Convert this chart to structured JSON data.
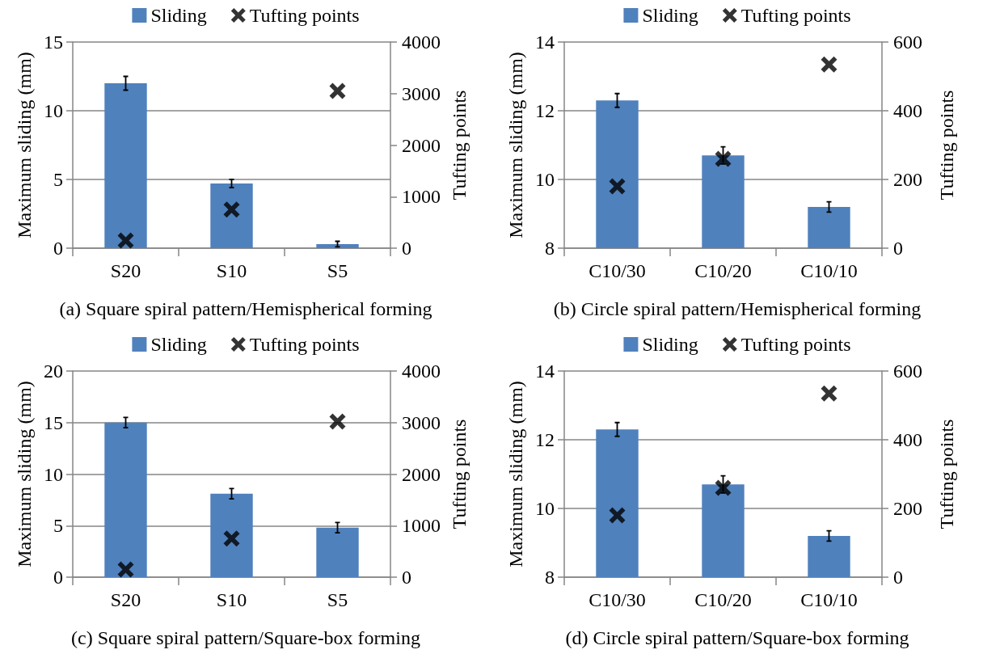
{
  "chart_data": [
    {
      "type": "bar",
      "title": "(a) Square spiral pattern/Hemispherical forming",
      "ylabel": "Maximum sliding (mm)",
      "y2label": "Tufting points",
      "categories": [
        "S20",
        "S10",
        "S5"
      ],
      "series": [
        {
          "name": "Sliding",
          "color": "#4f81bd",
          "values": [
            12.0,
            4.7,
            0.3
          ],
          "errors": [
            0.5,
            0.3,
            0.2
          ]
        },
        {
          "name": "Tufting points",
          "type": "scatter",
          "axis": "y2",
          "color": "#000000",
          "marker": "cross",
          "values": [
            150,
            750,
            3050
          ]
        }
      ],
      "ylim": [
        0,
        15
      ],
      "yticks": [
        0,
        5,
        10,
        15
      ],
      "y2lim": [
        0,
        4000
      ],
      "y2ticks": [
        0,
        1000,
        2000,
        3000,
        4000
      ],
      "grid": "y",
      "legend": "top"
    },
    {
      "type": "bar",
      "title": "(b) Circle spiral pattern/Hemispherical forming",
      "ylabel": "Maximum sliding (mm)",
      "y2label": "Tufting points",
      "categories": [
        "C10/30",
        "C10/20",
        "C10/10"
      ],
      "series": [
        {
          "name": "Sliding",
          "color": "#4f81bd",
          "values": [
            12.3,
            10.7,
            9.2
          ],
          "errors": [
            0.2,
            0.25,
            0.15
          ]
        },
        {
          "name": "Tufting points",
          "type": "scatter",
          "axis": "y2",
          "color": "#000000",
          "marker": "cross",
          "values": [
            180,
            260,
            535
          ]
        }
      ],
      "ylim": [
        8,
        14
      ],
      "yticks": [
        8,
        10,
        12,
        14
      ],
      "y2lim": [
        0,
        600
      ],
      "y2ticks": [
        0,
        200,
        400,
        600
      ],
      "grid": "y",
      "legend": "top"
    },
    {
      "type": "bar",
      "title": "(c) Square spiral pattern/Square-box forming",
      "ylabel": "Maximum sliding (mm)",
      "y2label": "Tufting points",
      "categories": [
        "S20",
        "S10",
        "S5"
      ],
      "series": [
        {
          "name": "Sliding",
          "color": "#4f81bd",
          "values": [
            15.0,
            8.1,
            4.8
          ],
          "errors": [
            0.5,
            0.5,
            0.5
          ]
        },
        {
          "name": "Tufting points",
          "type": "scatter",
          "axis": "y2",
          "color": "#000000",
          "marker": "cross",
          "values": [
            150,
            750,
            3020
          ]
        }
      ],
      "ylim": [
        0,
        20
      ],
      "yticks": [
        0,
        5,
        10,
        15,
        20
      ],
      "y2lim": [
        0,
        4000
      ],
      "y2ticks": [
        0,
        1000,
        2000,
        3000,
        4000
      ],
      "grid": "y",
      "legend": "top"
    },
    {
      "type": "bar",
      "title": "(d) Circle spiral pattern/Square-box forming",
      "ylabel": "Maximum sliding (mm)",
      "y2label": "Tufting points",
      "categories": [
        "C10/30",
        "C10/20",
        "C10/10"
      ],
      "series": [
        {
          "name": "Sliding",
          "color": "#4f81bd",
          "values": [
            12.3,
            10.7,
            9.2
          ],
          "errors": [
            0.2,
            0.25,
            0.15
          ]
        },
        {
          "name": "Tufting points",
          "type": "scatter",
          "axis": "y2",
          "color": "#000000",
          "marker": "cross",
          "values": [
            180,
            260,
            535
          ]
        }
      ],
      "ylim": [
        8,
        14
      ],
      "yticks": [
        8,
        10,
        12,
        14
      ],
      "y2lim": [
        0,
        600
      ],
      "y2ticks": [
        0,
        200,
        400,
        600
      ],
      "grid": "y",
      "legend": "top"
    }
  ]
}
